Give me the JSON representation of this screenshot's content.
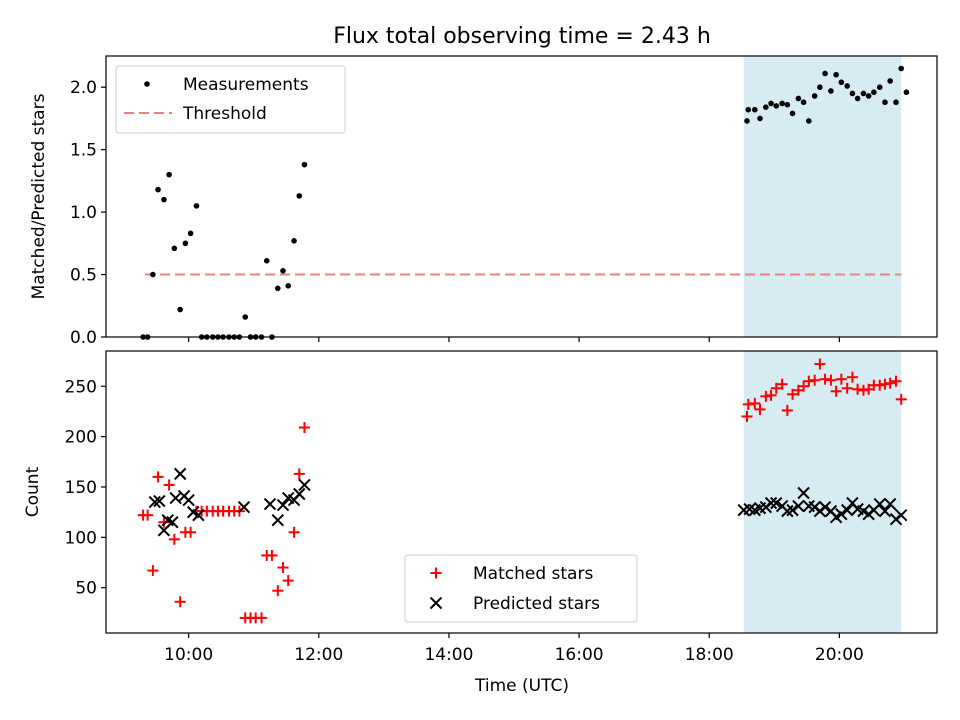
{
  "title": "Flux total observing time = 2.43 h",
  "colors": {
    "measurement": "#000000",
    "threshold": "#f08080",
    "matched": "#ff0000",
    "predicted": "#000000",
    "shade": "#add8e6"
  },
  "shade_range_hours": [
    18.53,
    20.95
  ],
  "chart_data": [
    {
      "type": "scatter",
      "name": "ratio-panel",
      "xlabel": "",
      "ylabel": "Matched/Predicted stars",
      "xlim": [
        8.73,
        21.5
      ],
      "ylim": [
        0,
        2.25
      ],
      "yticks": [
        0.0,
        0.5,
        1.0,
        1.5,
        2.0
      ],
      "ytick_labels": [
        "0.0",
        "0.5",
        "1.0",
        "1.5",
        "2.0"
      ],
      "legend": {
        "location": "upper-left",
        "entries": [
          "Measurements",
          "Threshold"
        ]
      },
      "threshold": {
        "value": 0.5,
        "x_range": [
          9.33,
          20.95
        ]
      },
      "series": [
        {
          "name": "Measurements",
          "points": [
            [
              9.3,
              0.0
            ],
            [
              9.37,
              0.0
            ],
            [
              9.45,
              0.5
            ],
            [
              9.53,
              1.18
            ],
            [
              9.62,
              1.1
            ],
            [
              9.7,
              1.3
            ],
            [
              9.78,
              0.71
            ],
            [
              9.87,
              0.22
            ],
            [
              9.95,
              0.75
            ],
            [
              10.03,
              0.83
            ],
            [
              10.12,
              1.05
            ],
            [
              10.2,
              0.0
            ],
            [
              10.28,
              0.0
            ],
            [
              10.37,
              0.0
            ],
            [
              10.45,
              0.0
            ],
            [
              10.53,
              0.0
            ],
            [
              10.62,
              0.0
            ],
            [
              10.7,
              0.0
            ],
            [
              10.78,
              0.0
            ],
            [
              10.87,
              0.16
            ],
            [
              10.95,
              0.0
            ],
            [
              11.03,
              0.0
            ],
            [
              11.12,
              0.0
            ],
            [
              11.2,
              0.61
            ],
            [
              11.28,
              0.0
            ],
            [
              11.37,
              0.39
            ],
            [
              11.45,
              0.53
            ],
            [
              11.53,
              0.41
            ],
            [
              11.62,
              0.77
            ],
            [
              11.7,
              1.13
            ],
            [
              11.78,
              1.38
            ],
            [
              18.58,
              1.73
            ],
            [
              18.6,
              1.82
            ],
            [
              18.7,
              1.82
            ],
            [
              18.78,
              1.75
            ],
            [
              18.87,
              1.84
            ],
            [
              18.95,
              1.87
            ],
            [
              19.03,
              1.85
            ],
            [
              19.12,
              1.87
            ],
            [
              19.2,
              1.86
            ],
            [
              19.28,
              1.79
            ],
            [
              19.37,
              1.91
            ],
            [
              19.45,
              1.88
            ],
            [
              19.53,
              1.73
            ],
            [
              19.62,
              1.93
            ],
            [
              19.7,
              2.0
            ],
            [
              19.78,
              2.11
            ],
            [
              19.87,
              1.97
            ],
            [
              19.95,
              2.1
            ],
            [
              20.03,
              2.04
            ],
            [
              20.12,
              2.01
            ],
            [
              20.2,
              1.95
            ],
            [
              20.28,
              1.91
            ],
            [
              20.37,
              1.95
            ],
            [
              20.45,
              1.93
            ],
            [
              20.53,
              1.96
            ],
            [
              20.62,
              2.0
            ],
            [
              20.7,
              1.88
            ],
            [
              20.78,
              2.05
            ],
            [
              20.87,
              1.88
            ],
            [
              20.95,
              2.15
            ],
            [
              21.03,
              1.96
            ]
          ]
        }
      ]
    },
    {
      "type": "scatter",
      "name": "count-panel",
      "xlabel": "Time (UTC)",
      "ylabel": "Count",
      "xlim": [
        8.73,
        21.5
      ],
      "ylim": [
        5,
        285
      ],
      "xticks": [
        10,
        12,
        14,
        16,
        18,
        20
      ],
      "xtick_labels": [
        "10:00",
        "12:00",
        "14:00",
        "16:00",
        "18:00",
        "20:00"
      ],
      "yticks": [
        50,
        100,
        150,
        200,
        250
      ],
      "ytick_labels": [
        "50",
        "100",
        "150",
        "200",
        "250"
      ],
      "legend": {
        "location": "lower-center",
        "entries": [
          "Matched stars",
          "Predicted stars"
        ]
      },
      "series": [
        {
          "name": "Matched stars",
          "marker": "plus",
          "points": [
            [
              9.3,
              122
            ],
            [
              9.37,
              122
            ],
            [
              9.45,
              67
            ],
            [
              9.53,
              160
            ],
            [
              9.62,
              115
            ],
            [
              9.7,
              152
            ],
            [
              9.78,
              98
            ],
            [
              9.87,
              36
            ],
            [
              9.95,
              105
            ],
            [
              10.03,
              105
            ],
            [
              10.12,
              126
            ],
            [
              10.2,
              126
            ],
            [
              10.28,
              126
            ],
            [
              10.37,
              126
            ],
            [
              10.45,
              126
            ],
            [
              10.53,
              126
            ],
            [
              10.62,
              126
            ],
            [
              10.7,
              126
            ],
            [
              10.78,
              126
            ],
            [
              10.87,
              20
            ],
            [
              10.95,
              20
            ],
            [
              11.03,
              20
            ],
            [
              11.12,
              20
            ],
            [
              11.2,
              82
            ],
            [
              11.28,
              82
            ],
            [
              11.37,
              47
            ],
            [
              11.45,
              70
            ],
            [
              11.53,
              57
            ],
            [
              11.62,
              105
            ],
            [
              11.7,
              163
            ],
            [
              11.78,
              209
            ],
            [
              18.58,
              220
            ],
            [
              18.6,
              232
            ],
            [
              18.7,
              233
            ],
            [
              18.78,
              227
            ],
            [
              18.87,
              240
            ],
            [
              18.95,
              241
            ],
            [
              19.03,
              248
            ],
            [
              19.12,
              252
            ],
            [
              19.2,
              226
            ],
            [
              19.28,
              242
            ],
            [
              19.37,
              246
            ],
            [
              19.45,
              250
            ],
            [
              19.53,
              255
            ],
            [
              19.62,
              256
            ],
            [
              19.7,
              272
            ],
            [
              19.78,
              257
            ],
            [
              19.87,
              256
            ],
            [
              19.95,
              245
            ],
            [
              20.03,
              257
            ],
            [
              20.12,
              248
            ],
            [
              20.2,
              259
            ],
            [
              20.28,
              247
            ],
            [
              20.37,
              246
            ],
            [
              20.45,
              247
            ],
            [
              20.53,
              251
            ],
            [
              20.62,
              251
            ],
            [
              20.7,
              252
            ],
            [
              20.78,
              253
            ],
            [
              20.87,
              255
            ],
            [
              20.95,
              237
            ]
          ]
        },
        {
          "name": "Predicted stars",
          "marker": "x",
          "points": [
            [
              9.48,
              135
            ],
            [
              9.55,
              136
            ],
            [
              9.62,
              107
            ],
            [
              9.68,
              117
            ],
            [
              9.75,
              115
            ],
            [
              9.8,
              139
            ],
            [
              9.87,
              163
            ],
            [
              9.93,
              141
            ],
            [
              10.0,
              137
            ],
            [
              10.07,
              125
            ],
            [
              10.15,
              122
            ],
            [
              10.85,
              130
            ],
            [
              11.25,
              133
            ],
            [
              11.37,
              117
            ],
            [
              11.45,
              132
            ],
            [
              11.53,
              139
            ],
            [
              11.62,
              137
            ],
            [
              11.7,
              143
            ],
            [
              11.78,
              152
            ],
            [
              18.53,
              127
            ],
            [
              18.62,
              128
            ],
            [
              18.7,
              127
            ],
            [
              18.78,
              129
            ],
            [
              18.87,
              130
            ],
            [
              18.95,
              134
            ],
            [
              19.03,
              134
            ],
            [
              19.12,
              131
            ],
            [
              19.2,
              126
            ],
            [
              19.28,
              127
            ],
            [
              19.37,
              131
            ],
            [
              19.45,
              144
            ],
            [
              19.53,
              131
            ],
            [
              19.62,
              130
            ],
            [
              19.7,
              126
            ],
            [
              19.78,
              130
            ],
            [
              19.87,
              126
            ],
            [
              19.95,
              120
            ],
            [
              20.03,
              123
            ],
            [
              20.12,
              127
            ],
            [
              20.2,
              134
            ],
            [
              20.28,
              128
            ],
            [
              20.37,
              126
            ],
            [
              20.45,
              123
            ],
            [
              20.53,
              127
            ],
            [
              20.62,
              133
            ],
            [
              20.7,
              126
            ],
            [
              20.78,
              133
            ],
            [
              20.87,
              118
            ],
            [
              20.95,
              122
            ]
          ]
        }
      ]
    }
  ]
}
